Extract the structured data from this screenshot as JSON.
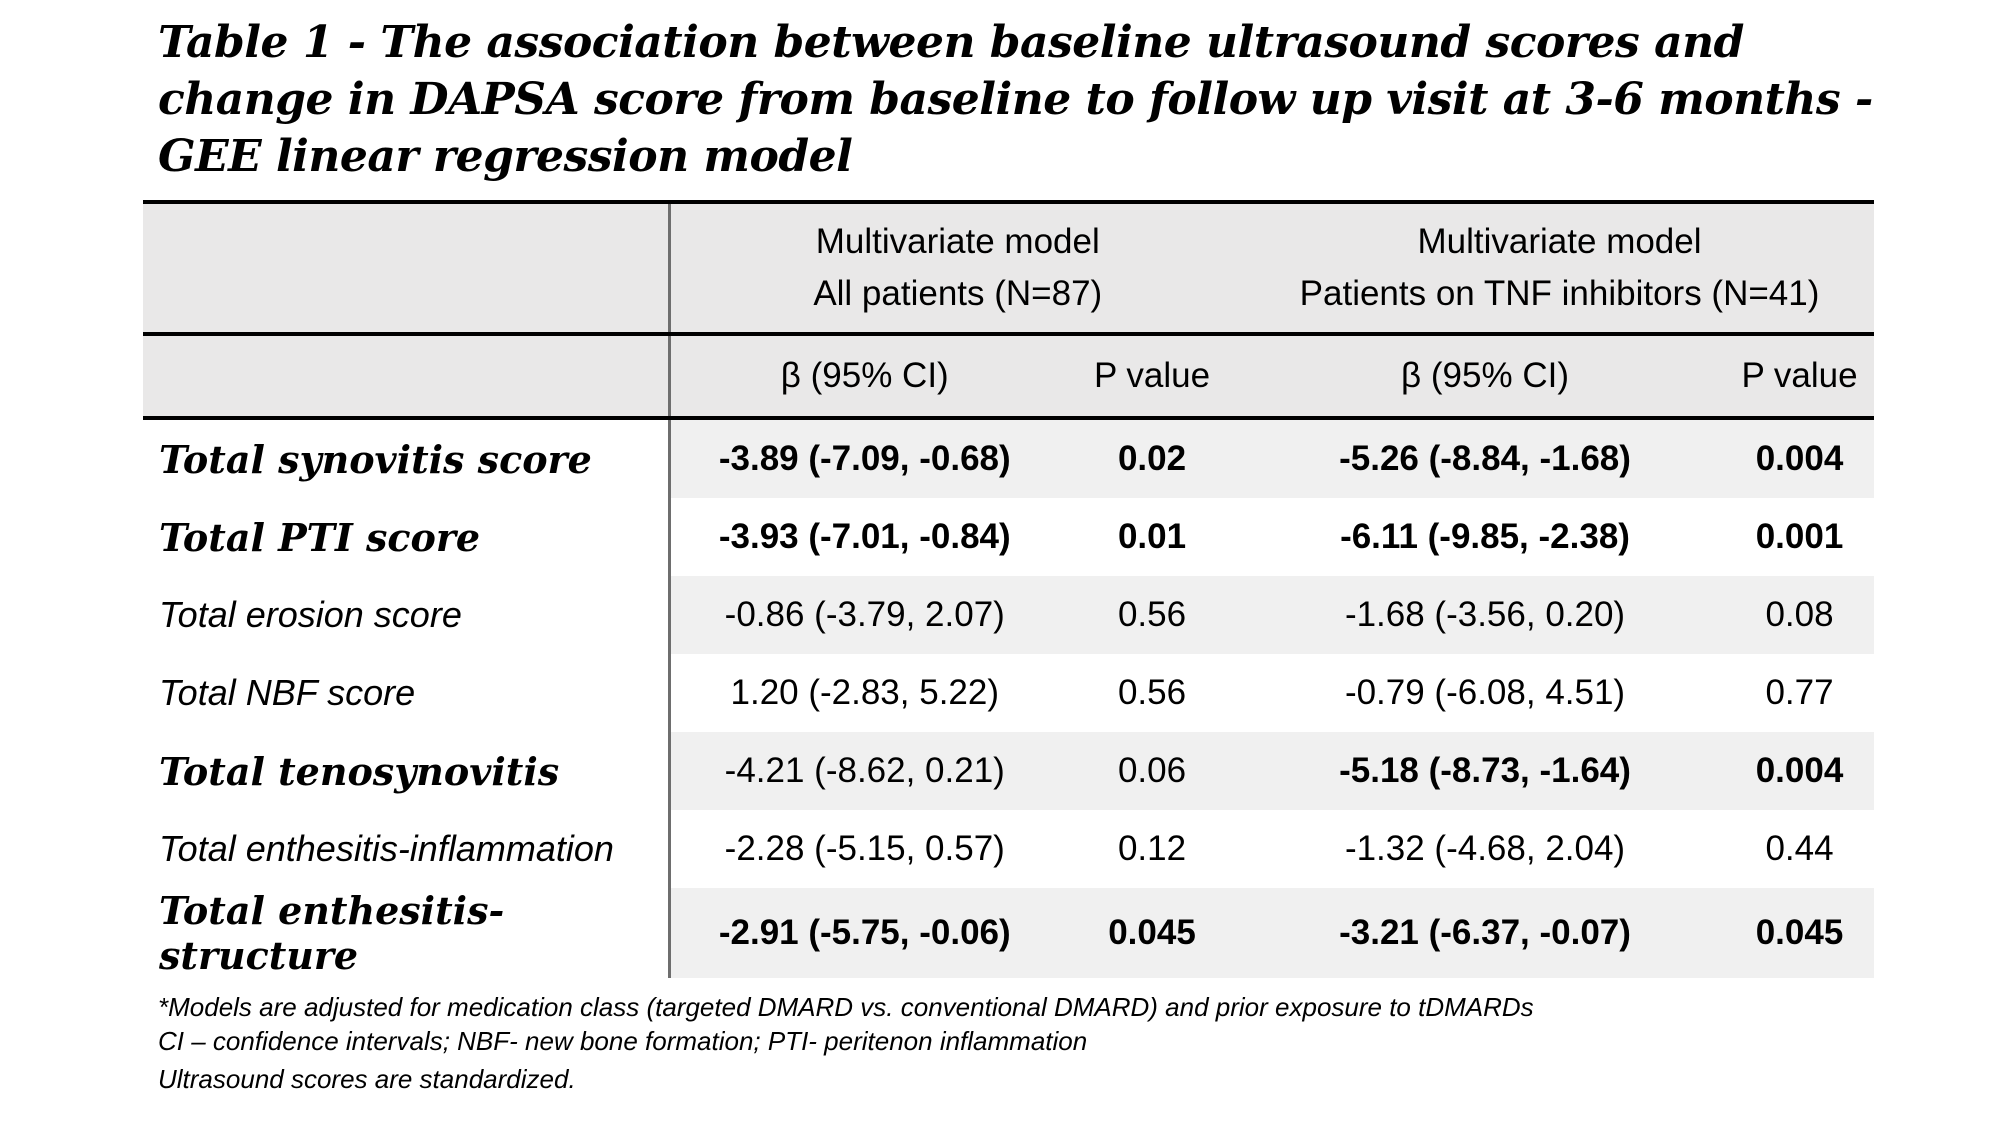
{
  "title": "Table 1 - The association between baseline ultrasound scores and change in DAPSA score from baseline to follow up visit at 3-6 months - GEE linear regression model",
  "header": {
    "group1_line1": "Multivariate model",
    "group1_line2": "All patients (N=87)",
    "group2_line1": "Multivariate model",
    "group2_line2": "Patients on TNF inhibitors (N=41)",
    "beta_label_1": "β (95% CI)",
    "p_label_1": "P value",
    "beta_label_2": "β (95% CI)",
    "p_label_2": "P value"
  },
  "rows": [
    {
      "label": "Total synovitis score",
      "bold_label": true,
      "b1": "-3.89 (-7.09, -0.68)",
      "p1": "0.02",
      "sig1": true,
      "b2": "-5.26 (-8.84, -1.68)",
      "p2": "0.004",
      "sig2": true
    },
    {
      "label": "Total PTI score",
      "bold_label": true,
      "b1": "-3.93 (-7.01, -0.84)",
      "p1": "0.01",
      "sig1": true,
      "b2": "-6.11 (-9.85, -2.38)",
      "p2": "0.001",
      "sig2": true
    },
    {
      "label": "Total erosion score",
      "bold_label": false,
      "b1": "-0.86 (-3.79, 2.07)",
      "p1": "0.56",
      "sig1": false,
      "b2": "-1.68 (-3.56, 0.20)",
      "p2": "0.08",
      "sig2": false
    },
    {
      "label": "Total NBF score",
      "bold_label": false,
      "b1": "1.20 (-2.83, 5.22)",
      "p1": "0.56",
      "sig1": false,
      "b2": "-0.79 (-6.08, 4.51)",
      "p2": "0.77",
      "sig2": false
    },
    {
      "label": "Total tenosynovitis",
      "bold_label": true,
      "b1": "-4.21 (-8.62, 0.21)",
      "p1": "0.06",
      "sig1": false,
      "b2": "-5.18 (-8.73, -1.64)",
      "p2": "0.004",
      "sig2": true
    },
    {
      "label": "Total enthesitis-inflammation",
      "bold_label": false,
      "b1": "-2.28 (-5.15, 0.57)",
      "p1": "0.12",
      "sig1": false,
      "b2": "-1.32 (-4.68, 2.04)",
      "p2": "0.44",
      "sig2": false
    },
    {
      "label": "Total enthesitis-structure",
      "bold_label": true,
      "b1": "-2.91 (-5.75, -0.06)",
      "p1": "0.045",
      "sig1": true,
      "b2": "-3.21 (-6.37, -0.07)",
      "p2": "0.045",
      "sig2": true
    }
  ],
  "notes": {
    "line1": "*Models are adjusted for medication class (targeted DMARD vs. conventional DMARD) and prior exposure to tDMARDs",
    "line2": "CI – confidence intervals; NBF- new bone formation; PTI- peritenon inflammation",
    "line3": "Ultrasound scores are standardized."
  }
}
